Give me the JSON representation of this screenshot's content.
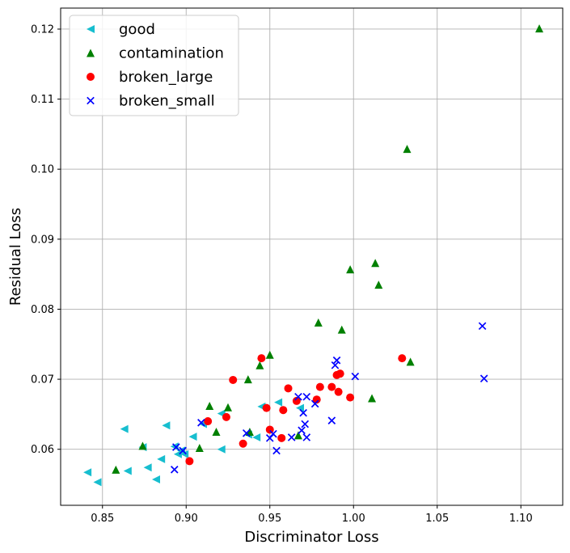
{
  "chart_data": {
    "type": "scatter",
    "title": "",
    "xlabel": "Discriminator Loss",
    "ylabel": "Residual Loss",
    "xlim": [
      0.825,
      1.125
    ],
    "ylim": [
      0.052,
      0.123
    ],
    "xticks": [
      0.85,
      0.9,
      0.95,
      1.0,
      1.05,
      1.1
    ],
    "xtick_labels": [
      "0.85",
      "0.90",
      "0.95",
      "1.00",
      "1.05",
      "1.10"
    ],
    "yticks": [
      0.06,
      0.07,
      0.08,
      0.09,
      0.1,
      0.11,
      0.12
    ],
    "ytick_labels": [
      "0.06",
      "0.07",
      "0.08",
      "0.09",
      "0.10",
      "0.11",
      "0.12"
    ],
    "grid": true,
    "legend_position": "top-left",
    "series": [
      {
        "name": "good",
        "marker": "triangle-left",
        "color": "#17becf",
        "points": [
          [
            0.841,
            0.0567
          ],
          [
            0.847,
            0.0553
          ],
          [
            0.863,
            0.0629
          ],
          [
            0.865,
            0.0569
          ],
          [
            0.874,
            0.0603
          ],
          [
            0.877,
            0.0574
          ],
          [
            0.882,
            0.0557
          ],
          [
            0.885,
            0.0586
          ],
          [
            0.888,
            0.0634
          ],
          [
            0.893,
            0.0604
          ],
          [
            0.895,
            0.0593
          ],
          [
            0.897,
            0.0598
          ],
          [
            0.899,
            0.0593
          ],
          [
            0.904,
            0.0618
          ],
          [
            0.91,
            0.0636
          ],
          [
            0.921,
            0.0651
          ],
          [
            0.921,
            0.06
          ],
          [
            0.937,
            0.0621
          ],
          [
            0.942,
            0.0617
          ],
          [
            0.945,
            0.0661
          ],
          [
            0.955,
            0.0667
          ],
          [
            0.968,
            0.0659
          ]
        ]
      },
      {
        "name": "contamination",
        "marker": "triangle-up",
        "color": "#008000",
        "points": [
          [
            0.858,
            0.0571
          ],
          [
            0.874,
            0.0605
          ],
          [
            0.908,
            0.0602
          ],
          [
            0.914,
            0.0662
          ],
          [
            0.918,
            0.0625
          ],
          [
            0.925,
            0.066
          ],
          [
            0.937,
            0.07
          ],
          [
            0.938,
            0.0625
          ],
          [
            0.944,
            0.072
          ],
          [
            0.95,
            0.0735
          ],
          [
            0.967,
            0.062
          ],
          [
            0.979,
            0.0781
          ],
          [
            0.993,
            0.0771
          ],
          [
            0.998,
            0.0857
          ],
          [
            1.011,
            0.0673
          ],
          [
            1.013,
            0.0866
          ],
          [
            1.015,
            0.0835
          ],
          [
            1.032,
            0.1029
          ],
          [
            1.034,
            0.0725
          ],
          [
            1.111,
            0.1201
          ]
        ]
      },
      {
        "name": "broken_large",
        "marker": "circle",
        "color": "#ff0000",
        "points": [
          [
            0.902,
            0.0583
          ],
          [
            0.913,
            0.064
          ],
          [
            0.924,
            0.0646
          ],
          [
            0.928,
            0.0699
          ],
          [
            0.934,
            0.0608
          ],
          [
            0.945,
            0.073
          ],
          [
            0.948,
            0.0659
          ],
          [
            0.95,
            0.0628
          ],
          [
            0.957,
            0.0616
          ],
          [
            0.958,
            0.0656
          ],
          [
            0.961,
            0.0687
          ],
          [
            0.966,
            0.0669
          ],
          [
            0.978,
            0.0671
          ],
          [
            0.98,
            0.0689
          ],
          [
            0.987,
            0.0689
          ],
          [
            0.99,
            0.0706
          ],
          [
            0.991,
            0.0682
          ],
          [
            0.992,
            0.0708
          ],
          [
            0.998,
            0.0674
          ],
          [
            1.029,
            0.073
          ]
        ]
      },
      {
        "name": "broken_small",
        "marker": "x",
        "color": "#0000ff",
        "points": [
          [
            0.893,
            0.0571
          ],
          [
            0.894,
            0.0603
          ],
          [
            0.898,
            0.0598
          ],
          [
            0.909,
            0.0638
          ],
          [
            0.936,
            0.0623
          ],
          [
            0.95,
            0.0616
          ],
          [
            0.952,
            0.0622
          ],
          [
            0.954,
            0.0598
          ],
          [
            0.963,
            0.0617
          ],
          [
            0.967,
            0.0675
          ],
          [
            0.969,
            0.0627
          ],
          [
            0.97,
            0.0652
          ],
          [
            0.971,
            0.0636
          ],
          [
            0.972,
            0.0617
          ],
          [
            0.972,
            0.0675
          ],
          [
            0.977,
            0.0665
          ],
          [
            0.987,
            0.0641
          ],
          [
            0.989,
            0.072
          ],
          [
            0.99,
            0.0727
          ],
          [
            1.001,
            0.0704
          ],
          [
            1.077,
            0.0776
          ],
          [
            1.078,
            0.0701
          ]
        ]
      }
    ]
  }
}
